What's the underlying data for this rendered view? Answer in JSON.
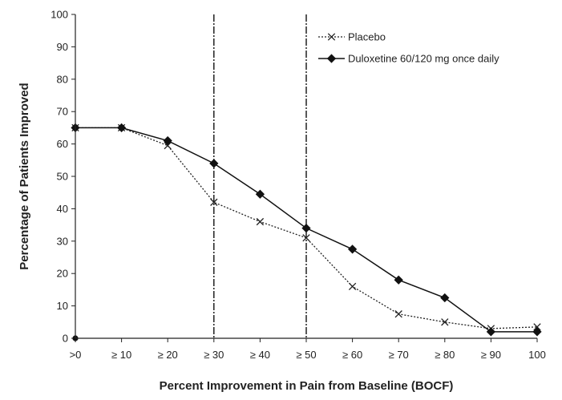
{
  "chart_data": {
    "type": "line",
    "title": "",
    "xlabel": "Percent Improvement in Pain from Baseline (BOCF)",
    "ylabel": "Percentage of Patients Improved",
    "categories": [
      ">0",
      "≥ 10",
      "≥ 20",
      "≥ 30",
      "≥ 40",
      "≥ 50",
      "≥ 60",
      "≥ 70",
      "≥ 80",
      "≥ 90",
      "100"
    ],
    "ylim": [
      0,
      100
    ],
    "yticks": [
      "0",
      "10",
      "20",
      "30",
      "40",
      "50",
      "60",
      "70",
      "80",
      "90",
      "100"
    ],
    "grid": false,
    "legend_position": "top-right",
    "reference_lines_at": [
      "≥ 30",
      "≥ 50"
    ],
    "series": [
      {
        "name": "Placebo",
        "style": "dotted",
        "marker": "x",
        "color": "#222222",
        "values": [
          65,
          65,
          59.5,
          42,
          36,
          31,
          16,
          7.5,
          5,
          3,
          3.5
        ]
      },
      {
        "name": "Duloxetine 60/120 mg once daily",
        "style": "solid",
        "marker": "diamond",
        "color": "#111111",
        "values": [
          65,
          65,
          61,
          54,
          44.5,
          34,
          27.5,
          18,
          12.5,
          2,
          2
        ]
      }
    ],
    "extra_points": [
      {
        "category": ">0",
        "value": 0,
        "marker": "dot"
      }
    ]
  }
}
